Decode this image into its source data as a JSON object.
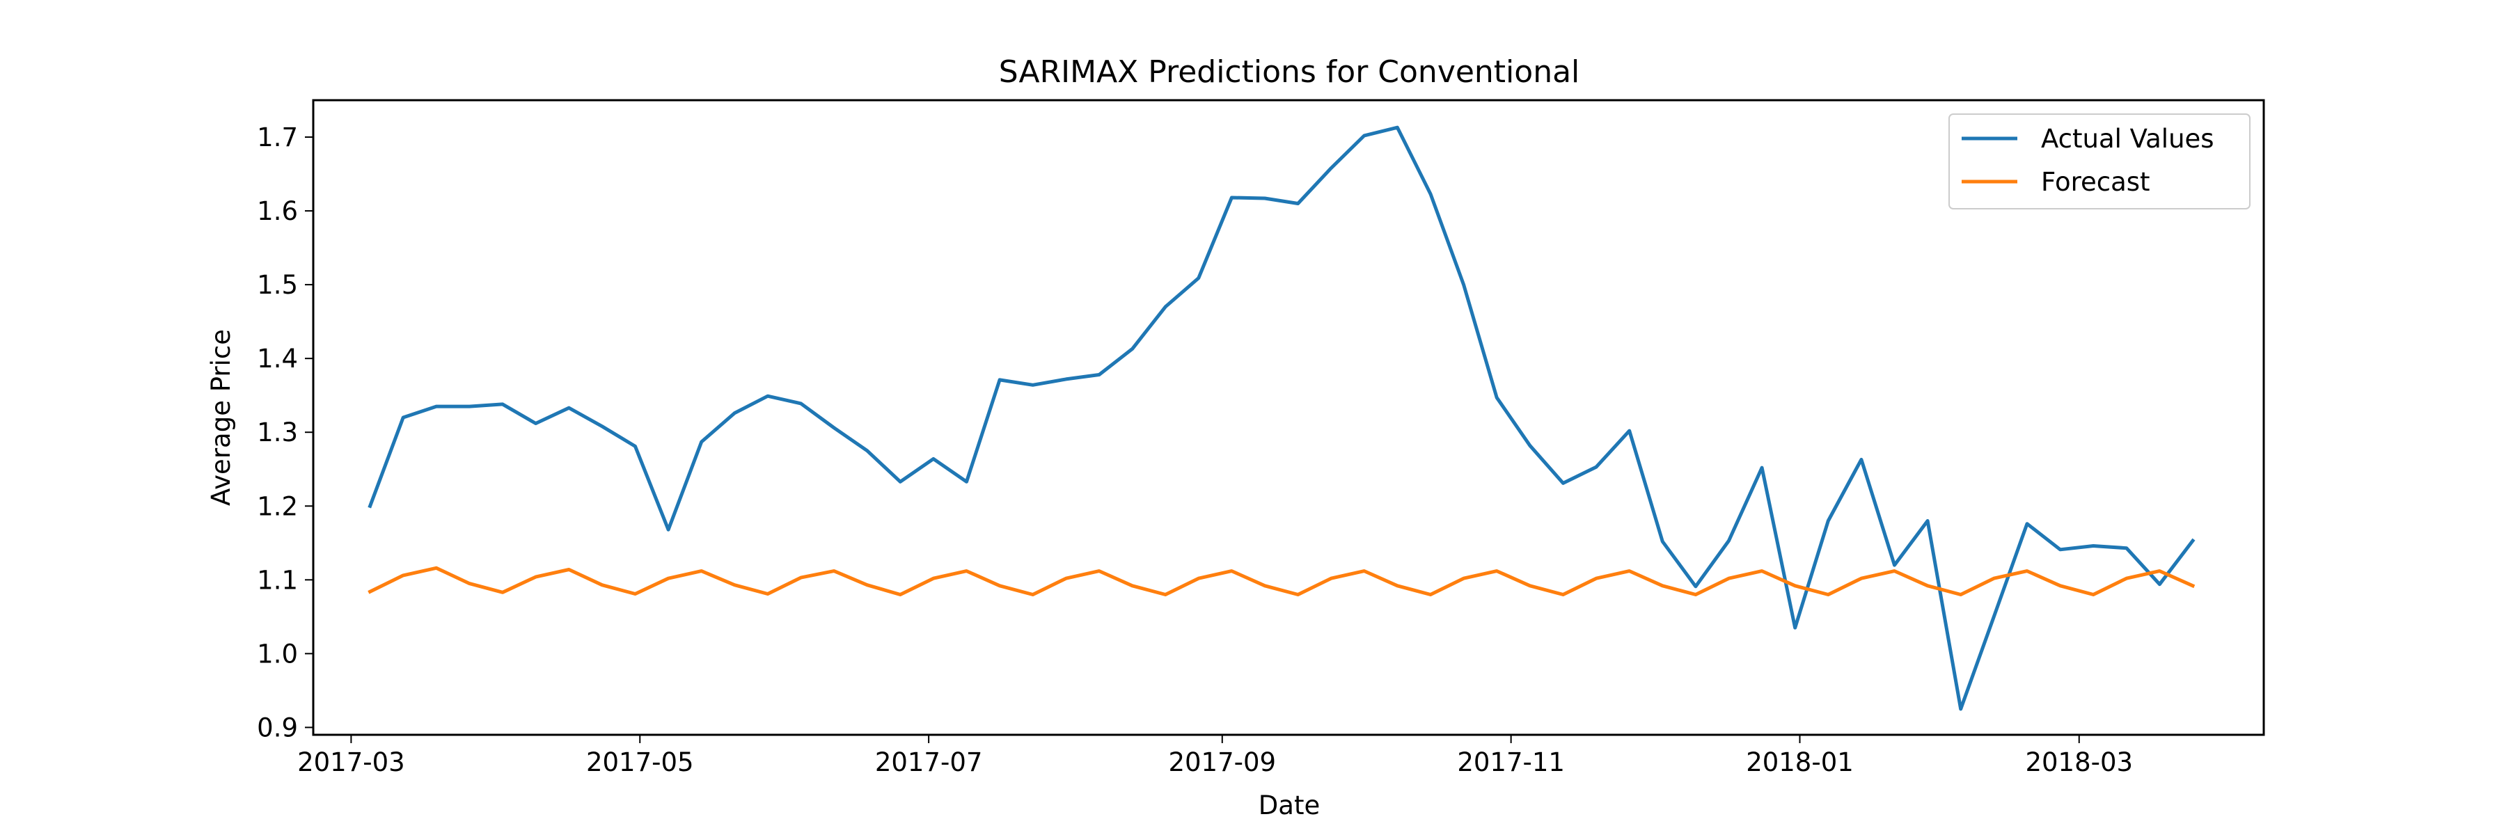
{
  "chart_data": {
    "type": "line",
    "title": "SARIMAX Predictions for Conventional",
    "xlabel": "Date",
    "ylabel": "Average Price",
    "xlim": [
      "2017-02-21",
      "2018-04-09"
    ],
    "ylim": [
      0.89,
      1.75
    ],
    "x_ticks": [
      "2017-03",
      "2017-05",
      "2017-07",
      "2017-09",
      "2017-11",
      "2018-01",
      "2018-03"
    ],
    "y_ticks": [
      "0.9",
      "1.0",
      "1.1",
      "1.2",
      "1.3",
      "1.4",
      "1.5",
      "1.6",
      "1.7"
    ],
    "grid": false,
    "legend_position": "upper right",
    "x": [
      "2017-03-05",
      "2017-03-12",
      "2017-03-19",
      "2017-03-26",
      "2017-04-02",
      "2017-04-09",
      "2017-04-16",
      "2017-04-23",
      "2017-04-30",
      "2017-05-07",
      "2017-05-14",
      "2017-05-21",
      "2017-05-28",
      "2017-06-04",
      "2017-06-11",
      "2017-06-18",
      "2017-06-25",
      "2017-07-02",
      "2017-07-09",
      "2017-07-16",
      "2017-07-23",
      "2017-07-30",
      "2017-08-06",
      "2017-08-13",
      "2017-08-20",
      "2017-08-27",
      "2017-09-03",
      "2017-09-10",
      "2017-09-17",
      "2017-09-24",
      "2017-10-01",
      "2017-10-08",
      "2017-10-15",
      "2017-10-22",
      "2017-10-29",
      "2017-11-05",
      "2017-11-12",
      "2017-11-19",
      "2017-11-26",
      "2017-12-03",
      "2017-12-10",
      "2017-12-17",
      "2017-12-24",
      "2017-12-31",
      "2018-01-07",
      "2018-01-14",
      "2018-01-21",
      "2018-01-28",
      "2018-02-04",
      "2018-02-11",
      "2018-02-18",
      "2018-02-25",
      "2018-03-04",
      "2018-03-11",
      "2018-03-18",
      "2018-03-25"
    ],
    "series": [
      {
        "name": "Actual Values",
        "color": "#1f77b4",
        "values": [
          1.2,
          1.32,
          1.335,
          1.335,
          1.338,
          1.312,
          1.333,
          1.308,
          1.281,
          1.168,
          1.287,
          1.326,
          1.349,
          1.339,
          1.306,
          1.275,
          1.233,
          1.264,
          1.233,
          1.371,
          1.364,
          1.372,
          1.378,
          1.413,
          1.47,
          1.509,
          1.618,
          1.617,
          1.61,
          1.658,
          1.702,
          1.713,
          1.623,
          1.5,
          1.347,
          1.282,
          1.231,
          1.253,
          1.302,
          1.152,
          1.091,
          1.153,
          1.252,
          1.035,
          1.18,
          1.263,
          1.12,
          1.18,
          0.925,
          1.05,
          1.176,
          1.141,
          1.146,
          1.143,
          1.094,
          1.153
        ]
      },
      {
        "name": "Forecast",
        "color": "#ff7f0e",
        "values": [
          1.084,
          1.106,
          1.116,
          1.095,
          1.083,
          1.104,
          1.114,
          1.093,
          1.081,
          1.102,
          1.112,
          1.093,
          1.081,
          1.103,
          1.112,
          1.093,
          1.08,
          1.102,
          1.112,
          1.092,
          1.08,
          1.102,
          1.112,
          1.092,
          1.08,
          1.102,
          1.112,
          1.092,
          1.08,
          1.102,
          1.112,
          1.092,
          1.08,
          1.102,
          1.112,
          1.092,
          1.08,
          1.102,
          1.112,
          1.092,
          1.08,
          1.102,
          1.112,
          1.092,
          1.08,
          1.102,
          1.112,
          1.092,
          1.08,
          1.102,
          1.112,
          1.092,
          1.08,
          1.102,
          1.112,
          1.092
        ]
      }
    ]
  }
}
